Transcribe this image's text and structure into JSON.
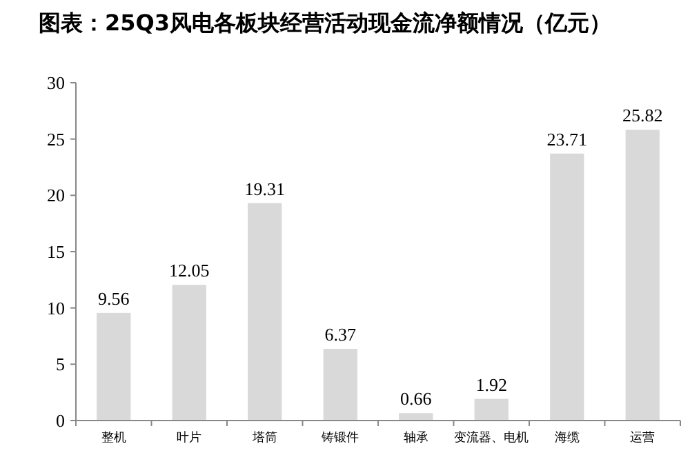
{
  "chart_data": {
    "type": "bar",
    "title": "图表：25Q3风电各板块经营活动现金流净额情况（亿元）",
    "categories": [
      "整机",
      "叶片",
      "塔筒",
      "铸锻件",
      "轴承",
      "变流器、电机",
      "海缆",
      "运营"
    ],
    "values": [
      9.56,
      12.05,
      19.31,
      6.37,
      0.66,
      1.92,
      23.71,
      25.82
    ],
    "color": "#d9d9d9",
    "ylim": [
      0,
      30
    ],
    "yticks": [
      0,
      5,
      10,
      15,
      20,
      25,
      30
    ],
    "data_labels": true
  }
}
